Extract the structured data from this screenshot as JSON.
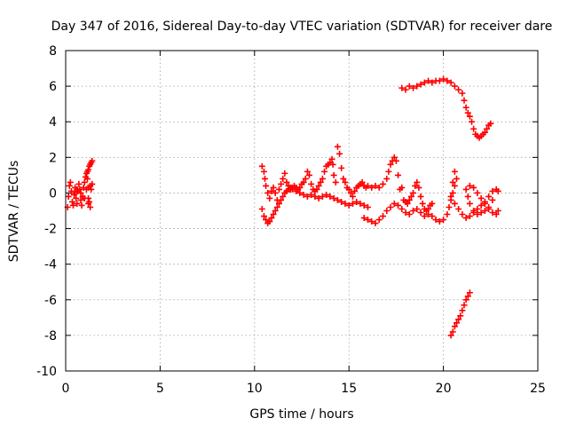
{
  "chart_data": {
    "type": "scatter",
    "title": "Day 347 of 2016, Sidereal Day-to-day VTEC variation (SDTVAR) for receiver dare",
    "xlabel": "GPS time / hours",
    "ylabel": "SDTVAR / TECUs",
    "xlim": [
      0,
      25
    ],
    "ylim": [
      -10,
      8
    ],
    "x_ticks": [
      0,
      5,
      10,
      15,
      20,
      25
    ],
    "y_ticks": [
      -10,
      -8,
      -6,
      -4,
      -2,
      0,
      2,
      4,
      6,
      8
    ],
    "x_tick_labels": [
      "0",
      "5",
      "10",
      "15",
      "20",
      "25"
    ],
    "y_tick_labels": [
      "-10",
      "-8",
      "-6",
      "-4",
      "-2",
      "0",
      "2",
      "4",
      "6",
      "8"
    ],
    "grid": true,
    "marker": "plus",
    "color": "#ff0000",
    "series": [
      {
        "points": [
          [
            0.1,
            -0.8
          ],
          [
            0.15,
            -0.2
          ],
          [
            0.2,
            0.4
          ],
          [
            0.25,
            0.6
          ],
          [
            0.3,
            0.1
          ],
          [
            0.35,
            -0.5
          ],
          [
            0.4,
            -0.7
          ],
          [
            0.45,
            -0.1
          ],
          [
            0.5,
            0.3
          ],
          [
            0.55,
            -0.3
          ],
          [
            0.6,
            -0.6
          ],
          [
            0.65,
            0.1
          ],
          [
            0.7,
            0.5
          ],
          [
            0.75,
            0.2
          ],
          [
            0.8,
            -0.4
          ],
          [
            0.85,
            -0.7
          ],
          [
            0.9,
            -0.2
          ],
          [
            0.95,
            0.3
          ],
          [
            1.0,
            0.6
          ],
          [
            1.05,
            0.9
          ],
          [
            1.1,
            1.1
          ],
          [
            1.15,
            0.8
          ],
          [
            1.2,
            0.3
          ],
          [
            1.25,
            -0.5
          ],
          [
            1.3,
            -0.8
          ],
          [
            1.2,
            -0.3
          ],
          [
            1.1,
            0.2
          ],
          [
            1.15,
            1.2
          ],
          [
            1.2,
            1.3
          ],
          [
            1.25,
            1.5
          ],
          [
            1.3,
            1.6
          ],
          [
            1.35,
            1.7
          ],
          [
            1.4,
            1.8
          ],
          [
            1.3,
            0.4
          ],
          [
            1.35,
            0.2
          ],
          [
            1.4,
            0.5
          ],
          [
            0.5,
            0.0
          ],
          [
            0.6,
            0.2
          ],
          [
            0.8,
            0.0
          ],
          [
            1.0,
            -0.3
          ],
          [
            1.2,
            -0.6
          ],
          [
            10.4,
            1.5
          ],
          [
            10.5,
            1.2
          ],
          [
            10.55,
            0.8
          ],
          [
            10.6,
            0.4
          ],
          [
            10.7,
            0.0
          ],
          [
            10.8,
            -0.3
          ],
          [
            10.9,
            0.1
          ],
          [
            11.0,
            0.3
          ],
          [
            11.1,
            0.0
          ],
          [
            11.2,
            -0.4
          ],
          [
            11.3,
            0.2
          ],
          [
            11.4,
            0.5
          ],
          [
            11.5,
            0.8
          ],
          [
            11.6,
            1.1
          ],
          [
            11.7,
            0.6
          ],
          [
            11.8,
            0.4
          ],
          [
            11.9,
            0.2
          ],
          [
            12.0,
            0.3
          ],
          [
            12.1,
            0.4
          ],
          [
            12.2,
            0.3
          ],
          [
            12.3,
            0.2
          ],
          [
            12.4,
            0.3
          ],
          [
            12.5,
            0.5
          ],
          [
            12.6,
            0.6
          ],
          [
            12.7,
            0.8
          ],
          [
            12.8,
            1.2
          ],
          [
            12.9,
            1.0
          ],
          [
            13.0,
            0.5
          ],
          [
            13.1,
            0.2
          ],
          [
            13.2,
            0.1
          ],
          [
            13.3,
            0.2
          ],
          [
            13.4,
            0.4
          ],
          [
            13.5,
            0.6
          ],
          [
            13.6,
            0.8
          ],
          [
            13.7,
            1.2
          ],
          [
            13.8,
            1.5
          ],
          [
            13.9,
            1.6
          ],
          [
            14.0,
            1.7
          ],
          [
            14.1,
            1.9
          ],
          [
            14.15,
            1.6
          ],
          [
            14.2,
            1.0
          ],
          [
            14.3,
            0.6
          ],
          [
            14.4,
            2.6
          ],
          [
            14.5,
            2.2
          ],
          [
            14.6,
            1.4
          ],
          [
            14.7,
            0.8
          ],
          [
            14.8,
            0.6
          ],
          [
            14.9,
            0.3
          ],
          [
            15.0,
            0.2
          ],
          [
            15.1,
            0.0
          ],
          [
            15.2,
            -0.2
          ],
          [
            15.3,
            0.1
          ],
          [
            15.4,
            0.3
          ],
          [
            15.5,
            0.4
          ],
          [
            15.6,
            0.5
          ],
          [
            15.7,
            0.6
          ],
          [
            15.8,
            0.4
          ],
          [
            15.9,
            0.3
          ],
          [
            16.0,
            0.4
          ],
          [
            16.2,
            0.3
          ],
          [
            16.4,
            0.4
          ],
          [
            16.6,
            0.3
          ],
          [
            16.8,
            0.5
          ],
          [
            17.0,
            0.8
          ],
          [
            17.1,
            1.2
          ],
          [
            17.2,
            1.6
          ],
          [
            17.3,
            1.8
          ],
          [
            17.4,
            2.0
          ],
          [
            17.5,
            1.8
          ],
          [
            17.6,
            1.0
          ],
          [
            17.7,
            0.2
          ],
          [
            17.8,
            0.3
          ],
          [
            17.9,
            -0.4
          ],
          [
            18.0,
            -0.5
          ],
          [
            18.1,
            -0.6
          ],
          [
            18.2,
            -0.4
          ],
          [
            18.3,
            -0.2
          ],
          [
            18.4,
            0.0
          ],
          [
            18.5,
            0.4
          ],
          [
            18.6,
            0.6
          ],
          [
            18.7,
            0.3
          ],
          [
            18.8,
            -0.2
          ],
          [
            18.9,
            -0.6
          ],
          [
            19.0,
            -0.9
          ],
          [
            19.1,
            -1.0
          ],
          [
            19.2,
            -0.9
          ],
          [
            19.3,
            -0.7
          ],
          [
            19.4,
            -0.6
          ],
          [
            10.4,
            -0.9
          ],
          [
            10.5,
            -1.3
          ],
          [
            10.6,
            -1.5
          ],
          [
            10.7,
            -1.7
          ],
          [
            10.8,
            -1.6
          ],
          [
            10.9,
            -1.4
          ],
          [
            11.0,
            -1.2
          ],
          [
            11.1,
            -1.0
          ],
          [
            11.2,
            -0.8
          ],
          [
            11.3,
            -0.6
          ],
          [
            11.4,
            -0.4
          ],
          [
            11.5,
            -0.2
          ],
          [
            11.6,
            0.0
          ],
          [
            11.7,
            0.1
          ],
          [
            11.8,
            0.2
          ],
          [
            11.9,
            0.3
          ],
          [
            12.0,
            0.2
          ],
          [
            12.2,
            0.1
          ],
          [
            12.4,
            0.0
          ],
          [
            12.6,
            -0.1
          ],
          [
            12.8,
            -0.2
          ],
          [
            13.0,
            -0.1
          ],
          [
            13.2,
            -0.2
          ],
          [
            13.4,
            -0.3
          ],
          [
            13.6,
            -0.2
          ],
          [
            13.8,
            -0.1
          ],
          [
            14.0,
            -0.2
          ],
          [
            14.2,
            -0.3
          ],
          [
            14.4,
            -0.4
          ],
          [
            14.6,
            -0.5
          ],
          [
            14.8,
            -0.6
          ],
          [
            15.0,
            -0.7
          ],
          [
            15.2,
            -0.6
          ],
          [
            15.4,
            -0.5
          ],
          [
            15.6,
            -0.6
          ],
          [
            15.8,
            -0.7
          ],
          [
            16.0,
            -0.8
          ],
          [
            15.8,
            -1.4
          ],
          [
            16.0,
            -1.5
          ],
          [
            16.2,
            -1.6
          ],
          [
            16.4,
            -1.7
          ],
          [
            16.6,
            -1.5
          ],
          [
            16.8,
            -1.3
          ],
          [
            17.0,
            -1.0
          ],
          [
            17.2,
            -0.8
          ],
          [
            17.4,
            -0.6
          ],
          [
            17.6,
            -0.7
          ],
          [
            17.8,
            -0.9
          ],
          [
            18.0,
            -1.1
          ],
          [
            18.2,
            -1.2
          ],
          [
            18.4,
            -1.0
          ],
          [
            18.6,
            -0.9
          ],
          [
            18.8,
            -1.1
          ],
          [
            19.0,
            -1.3
          ],
          [
            19.2,
            -1.2
          ],
          [
            19.4,
            -1.3
          ],
          [
            19.6,
            -1.5
          ],
          [
            19.8,
            -1.6
          ],
          [
            20.0,
            -1.5
          ],
          [
            20.2,
            -1.2
          ],
          [
            20.3,
            -0.8
          ],
          [
            20.4,
            -0.4
          ],
          [
            20.5,
            0.0
          ],
          [
            20.6,
            0.4
          ],
          [
            20.7,
            0.8
          ],
          [
            20.6,
            1.2
          ],
          [
            20.5,
            0.6
          ],
          [
            20.4,
            -0.2
          ],
          [
            20.6,
            -0.6
          ],
          [
            20.8,
            -0.9
          ],
          [
            21.0,
            -1.2
          ],
          [
            21.2,
            -1.4
          ],
          [
            21.4,
            -1.3
          ],
          [
            21.6,
            -1.1
          ],
          [
            21.8,
            -0.9
          ],
          [
            22.0,
            -0.7
          ],
          [
            22.2,
            -0.5
          ],
          [
            22.4,
            -0.2
          ],
          [
            22.6,
            0.1
          ],
          [
            22.8,
            0.2
          ],
          [
            22.9,
            0.1
          ],
          [
            22.6,
            -0.4
          ],
          [
            22.4,
            -0.8
          ],
          [
            22.2,
            -1.0
          ],
          [
            22.0,
            -1.1
          ],
          [
            21.8,
            -1.2
          ],
          [
            21.6,
            -1.0
          ],
          [
            21.4,
            -0.6
          ],
          [
            21.3,
            -0.2
          ],
          [
            21.2,
            0.2
          ],
          [
            21.4,
            0.4
          ],
          [
            21.6,
            0.3
          ],
          [
            21.8,
            0.0
          ],
          [
            22.0,
            -0.3
          ],
          [
            22.2,
            -0.6
          ],
          [
            22.4,
            -0.9
          ],
          [
            22.6,
            -1.1
          ],
          [
            22.8,
            -1.2
          ],
          [
            22.9,
            -1.0
          ],
          [
            17.8,
            5.9
          ],
          [
            18.0,
            5.8
          ],
          [
            18.2,
            6.0
          ],
          [
            18.4,
            5.9
          ],
          [
            18.6,
            6.0
          ],
          [
            18.8,
            6.1
          ],
          [
            19.0,
            6.2
          ],
          [
            19.2,
            6.3
          ],
          [
            19.4,
            6.2
          ],
          [
            19.6,
            6.3
          ],
          [
            19.8,
            6.3
          ],
          [
            20.0,
            6.4
          ],
          [
            20.2,
            6.3
          ],
          [
            20.4,
            6.2
          ],
          [
            20.6,
            6.0
          ],
          [
            20.8,
            5.8
          ],
          [
            21.0,
            5.6
          ],
          [
            21.1,
            5.2
          ],
          [
            21.2,
            4.8
          ],
          [
            21.3,
            4.5
          ],
          [
            21.4,
            4.3
          ],
          [
            21.5,
            4.0
          ],
          [
            21.6,
            3.6
          ],
          [
            21.7,
            3.3
          ],
          [
            21.8,
            3.2
          ],
          [
            21.9,
            3.1
          ],
          [
            22.0,
            3.2
          ],
          [
            22.1,
            3.3
          ],
          [
            22.2,
            3.4
          ],
          [
            22.3,
            3.6
          ],
          [
            22.4,
            3.8
          ],
          [
            22.5,
            3.9
          ],
          [
            20.4,
            -8.0
          ],
          [
            20.5,
            -7.8
          ],
          [
            20.6,
            -7.5
          ],
          [
            20.7,
            -7.3
          ],
          [
            20.8,
            -7.1
          ],
          [
            20.9,
            -6.9
          ],
          [
            21.0,
            -6.6
          ],
          [
            21.1,
            -6.3
          ],
          [
            21.2,
            -6.0
          ],
          [
            21.3,
            -5.8
          ],
          [
            21.4,
            -5.6
          ]
        ]
      }
    ]
  }
}
